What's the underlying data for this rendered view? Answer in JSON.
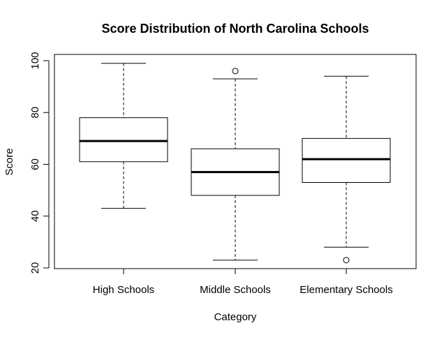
{
  "chart_data": {
    "type": "box",
    "title": "Score Distribution of North Carolina Schools",
    "xlabel": "Category",
    "ylabel": "Score",
    "ylim": [
      20,
      100
    ],
    "yticks": [
      20,
      40,
      60,
      80,
      100
    ],
    "grid": false,
    "legend": "none",
    "categories": [
      "High Schools",
      "Middle Schools",
      "Elementary Schools"
    ],
    "boxes": [
      {
        "lower_whisker": 43,
        "q1": 61,
        "median": 69,
        "q3": 78,
        "upper_whisker": 99,
        "outliers": []
      },
      {
        "lower_whisker": 23,
        "q1": 48,
        "median": 57,
        "q3": 66,
        "upper_whisker": 93,
        "outliers": [
          96
        ]
      },
      {
        "lower_whisker": 28,
        "q1": 53,
        "median": 62,
        "q3": 70,
        "upper_whisker": 94,
        "outliers": [
          23
        ]
      }
    ]
  }
}
